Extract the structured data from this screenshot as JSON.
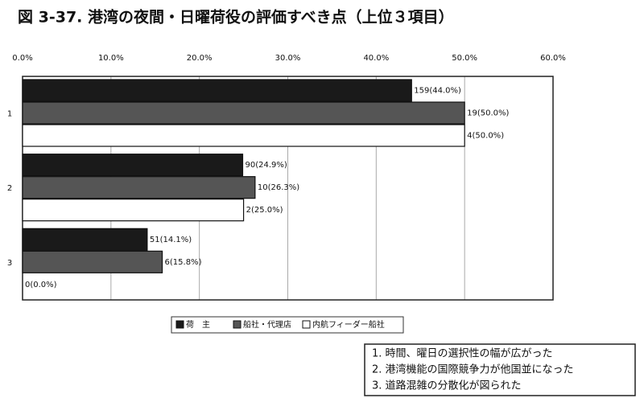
{
  "chart_data": {
    "type": "hbar",
    "title": "図 3-37. 港湾の夜間・日曜荷役の評価すべき点（上位３項目）",
    "categories": [
      "1",
      "2",
      "3"
    ],
    "series": [
      {
        "name": "荷　主",
        "color": "#1a1a1a",
        "values": [
          44.0,
          24.9,
          14.1
        ],
        "value_labels": [
          "159(44.0%)",
          "90(24.9%)",
          "51(14.1%)"
        ]
      },
      {
        "name": "船社・代理店",
        "color": "#555555",
        "values": [
          50.0,
          26.3,
          15.8
        ],
        "value_labels": [
          "19(50.0%)",
          "10(26.3%)",
          "6(15.8%)"
        ]
      },
      {
        "name": "内航フィーダー船社",
        "color": "#ffffff",
        "values": [
          50.0,
          25.0,
          0.0
        ],
        "value_labels": [
          "4(50.0%)",
          "2(25.0%)",
          "0(0.0%)"
        ]
      }
    ],
    "xlim": [
      0,
      60
    ],
    "xticks": [
      {
        "value": 0,
        "label": "0.0%"
      },
      {
        "value": 10,
        "label": "10.0%"
      },
      {
        "value": 20,
        "label": "20.0%"
      },
      {
        "value": 30,
        "label": "30.0%"
      },
      {
        "value": 40,
        "label": "40.0%"
      },
      {
        "value": 50,
        "label": "50.0%"
      },
      {
        "value": 60,
        "label": "60.0%"
      }
    ],
    "grid": true,
    "legend": "bottom",
    "notes": [
      "1.  時間、曜日の選択性の幅が広がった",
      "2.  港湾機能の国際競争力が他国並になった",
      "3.  道路混雑の分散化が図られた"
    ]
  }
}
